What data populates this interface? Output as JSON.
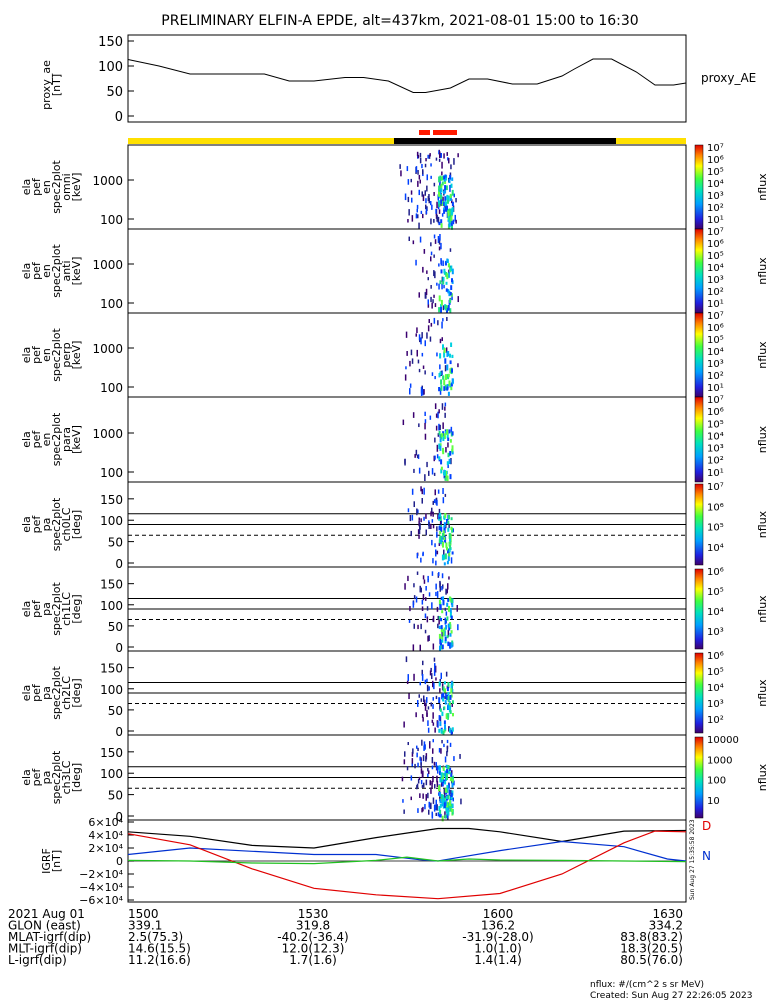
{
  "title": "PRELIMINARY ELFIN-A EPDE, alt=437km, 2021-08-01 15:00 to 16:30",
  "colors": {
    "flux_yellow": "#ffe000",
    "flux_black": "#000000",
    "flux_red": "#ff1a00",
    "black_curve": "#000000",
    "blue_curve": "#0030d0",
    "red_curve": "#e00000",
    "green_curve": "#20c020"
  },
  "chart_data": [
    {
      "type": "line",
      "panel": "proxy_ae",
      "ylabel": [
        "proxy_ae",
        "[nT]"
      ],
      "series_label": "proxy_AE",
      "yticks": [
        "150",
        "100",
        "50",
        "0"
      ],
      "ylim": [
        0,
        150
      ],
      "xlim": [
        0,
        90
      ],
      "x": [
        0,
        5,
        10,
        15,
        22,
        26,
        30,
        35,
        38,
        42,
        46,
        48,
        52,
        55,
        58,
        62,
        66,
        70,
        72,
        75,
        78,
        82,
        85,
        88,
        90
      ],
      "y": [
        113,
        100,
        84,
        84,
        84,
        70,
        70,
        77,
        77,
        70,
        47,
        47,
        56,
        74,
        74,
        64,
        64,
        80,
        94,
        114,
        114,
        88,
        62,
        62,
        66
      ]
    },
    {
      "type": "heatmap",
      "panel": "en_omni",
      "ylabel": [
        "ela",
        "pef",
        "en",
        "spec2plot",
        "omni",
        "[keV]"
      ],
      "yticks": [
        "1000",
        "100"
      ],
      "cbar_ticks": [
        "10⁷",
        "10⁶",
        "10⁵",
        "10⁴",
        "10³",
        "10²",
        "10¹"
      ],
      "cbar_label": "nflux"
    },
    {
      "type": "heatmap",
      "panel": "en_anti",
      "ylabel": [
        "ela",
        "pef",
        "en",
        "spec2plot",
        "anti",
        "[keV]"
      ],
      "yticks": [
        "1000",
        "100"
      ],
      "cbar_ticks": [
        "10⁷",
        "10⁶",
        "10⁵",
        "10⁴",
        "10³",
        "10²",
        "10¹"
      ],
      "cbar_label": "nflux"
    },
    {
      "type": "heatmap",
      "panel": "en_perp",
      "ylabel": [
        "ela",
        "pef",
        "en",
        "spec2plot",
        "perp",
        "[keV]"
      ],
      "yticks": [
        "1000",
        "100"
      ],
      "cbar_ticks": [
        "10⁷",
        "10⁶",
        "10⁵",
        "10⁴",
        "10³",
        "10²",
        "10¹"
      ],
      "cbar_label": "nflux"
    },
    {
      "type": "heatmap",
      "panel": "en_para",
      "ylabel": [
        "ela",
        "pef",
        "en",
        "spec2plot",
        "para",
        "[keV]"
      ],
      "yticks": [
        "1000",
        "100"
      ],
      "cbar_ticks": [
        "10⁷",
        "10⁶",
        "10⁵",
        "10⁴",
        "10³",
        "10²",
        "10¹"
      ],
      "cbar_label": "nflux"
    },
    {
      "type": "heatmap",
      "panel": "pa_ch0",
      "ylabel": [
        "ela",
        "pef",
        "pa",
        "spec2plot",
        "ch0LC",
        "[deg]"
      ],
      "yticks": [
        "150",
        "100",
        "50",
        "0"
      ],
      "cbar_ticks": [
        "10⁷",
        "10⁶",
        "10⁵",
        "10⁴"
      ],
      "cbar_label": "nflux"
    },
    {
      "type": "heatmap",
      "panel": "pa_ch1",
      "ylabel": [
        "ela",
        "pef",
        "pa",
        "spec2plot",
        "ch1LC",
        "[deg]"
      ],
      "yticks": [
        "150",
        "100",
        "50",
        "0"
      ],
      "cbar_ticks": [
        "10⁶",
        "10⁵",
        "10⁴",
        "10³"
      ],
      "cbar_label": "nflux"
    },
    {
      "type": "heatmap",
      "panel": "pa_ch2",
      "ylabel": [
        "ela",
        "pef",
        "pa",
        "spec2plot",
        "ch2LC",
        "[deg]"
      ],
      "yticks": [
        "150",
        "100",
        "50",
        "0"
      ],
      "cbar_ticks": [
        "10⁶",
        "10⁵",
        "10⁴",
        "10³",
        "10²"
      ],
      "cbar_label": "nflux"
    },
    {
      "type": "heatmap",
      "panel": "pa_ch3",
      "ylabel": [
        "ela",
        "pef",
        "pa",
        "spec2plot",
        "ch3LC",
        "[deg]"
      ],
      "yticks": [
        "150",
        "100",
        "50",
        "0"
      ],
      "cbar_ticks": [
        "10000",
        "1000",
        "100",
        "10"
      ],
      "cbar_label": "nflux"
    },
    {
      "type": "line",
      "panel": "igrf",
      "ylabel": [
        "IGRF",
        "[nT]"
      ],
      "yticks": [
        "6×10⁴",
        "4×10⁴",
        "2×10⁴",
        "0",
        "−2×10⁴",
        "−4×10⁴",
        "−6×10⁴"
      ],
      "ylim": [
        -60000,
        60000
      ],
      "xlim": [
        0,
        90
      ],
      "legend": [
        "D",
        "N"
      ],
      "stamp": "Sun Aug 27 15:35:58 2023",
      "series": [
        {
          "name": "black",
          "x": [
            0,
            10,
            20,
            30,
            40,
            50,
            55,
            60,
            70,
            80,
            90
          ],
          "y": [
            45000,
            38000,
            24000,
            20000,
            36000,
            50000,
            50000,
            45000,
            30000,
            46000,
            47000
          ]
        },
        {
          "name": "blue",
          "x": [
            0,
            10,
            20,
            30,
            40,
            47,
            50,
            53,
            60,
            70,
            80,
            87,
            90
          ],
          "y": [
            10000,
            20000,
            15000,
            10000,
            10000,
            2000,
            0,
            5000,
            16000,
            30000,
            22000,
            3000,
            0
          ]
        },
        {
          "name": "red",
          "x": [
            0,
            10,
            20,
            30,
            40,
            50,
            60,
            70,
            80,
            85,
            90
          ],
          "y": [
            42000,
            25000,
            -12000,
            -42000,
            -52000,
            -58000,
            -50000,
            -20000,
            28000,
            46000,
            45000
          ]
        },
        {
          "name": "green",
          "x": [
            0,
            10,
            20,
            30,
            40,
            45,
            50,
            55,
            60,
            70,
            80,
            90
          ],
          "y": [
            1000,
            0,
            -3000,
            -4000,
            1000,
            6000,
            0,
            3000,
            1500,
            1000,
            0,
            -1000
          ]
        }
      ]
    }
  ],
  "orbit_table": {
    "rows": [
      {
        "label": "2021 Aug 01",
        "values": [
          "1500",
          "1530",
          "1600",
          "1630"
        ]
      },
      {
        "label": "GLON (east)",
        "values": [
          "339.1",
          "319.8",
          "136.2",
          "334.2"
        ]
      },
      {
        "label": "MLAT-igrf(dip)",
        "values": [
          "2.5(75.3)",
          "-40.2(-36.4)",
          "-31.9(-28.0)",
          "83.8(83.2)"
        ]
      },
      {
        "label": "MLT-igrf(dip)",
        "values": [
          "14.6(15.5)",
          "12.0(12.3)",
          "1.0(1.0)",
          "18.3(20.5)"
        ]
      },
      {
        "label": "L-igrf(dip)",
        "values": [
          "11.2(16.6)",
          "1.7(1.6)",
          "1.4(1.4)",
          "80.5(76.0)"
        ]
      }
    ]
  },
  "footer": {
    "units": "nflux: #/(cm^2 s sr MeV)",
    "created": "Created: Sun Aug 27 22:26:05 2023"
  }
}
